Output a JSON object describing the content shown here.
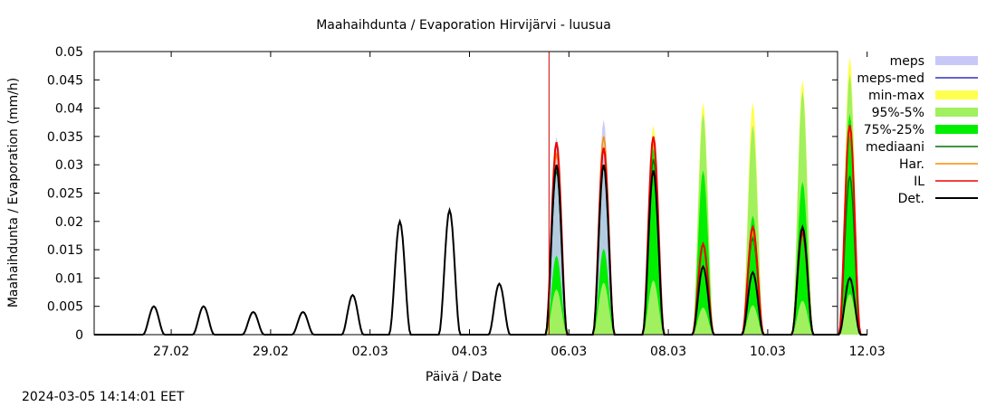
{
  "timestamp": "2024-03-05 14:14:01 EET",
  "chart_data": {
    "type": "area",
    "title": "Maahaihdunta / Evaporation   Hirvijärvi - luusua",
    "xlabel": "Päivä / Date",
    "ylabel": "Maahaihdunta / Evaporation (mm/h)",
    "xlim": [
      0,
      14.3
    ],
    "ylim": [
      0,
      0.05
    ],
    "x_ticks": [
      {
        "x": 1,
        "label": "27.02"
      },
      {
        "x": 3,
        "label": "29.02"
      },
      {
        "x": 5,
        "label": "02.03"
      },
      {
        "x": 7,
        "label": "04.03"
      },
      {
        "x": 9,
        "label": "06.03"
      },
      {
        "x": 11,
        "label": "08.03"
      },
      {
        "x": 13,
        "label": "10.03"
      },
      {
        "x": 15,
        "label": "12.03"
      }
    ],
    "y_ticks": [
      "0",
      "0.005",
      "0.01",
      "0.015",
      "0.02",
      "0.025",
      "0.03",
      "0.035",
      "0.04",
      "0.045",
      "0.05"
    ],
    "now_x": 8.6,
    "grid": false,
    "legend_position": "right",
    "colors": {
      "meps": "#c8c8f8",
      "meps-med": "#3030c0",
      "min-max": "#ffff50",
      "95%-5%": "#a0f060",
      "75%-25%": "#00ee00",
      "mediaani": "#007000",
      "Har.": "#ff8c00",
      "IL": "#ee0000",
      "Det.": "#000000",
      "now_line": "#cc0000"
    },
    "legend": [
      "meps",
      "meps-med",
      "min-max",
      "95%-5%",
      "75%-25%",
      "mediaani",
      "Har.",
      "IL",
      "Det."
    ],
    "history_peaks": [
      {
        "x": 0.65,
        "det": 0.005
      },
      {
        "x": 1.65,
        "det": 0.005
      },
      {
        "x": 2.65,
        "det": 0.004
      },
      {
        "x": 3.65,
        "det": 0.004
      },
      {
        "x": 4.65,
        "det": 0.007
      },
      {
        "x": 5.6,
        "det": 0.02
      },
      {
        "x": 6.6,
        "det": 0.022
      },
      {
        "x": 7.6,
        "det": 0.009
      }
    ],
    "forecast_peaks": [
      {
        "x": 8.75,
        "min": 0,
        "max": 0.033,
        "p5": 0.005,
        "p95": 0.031,
        "p25": 0.02,
        "p75": 0.03,
        "median": 0.029,
        "har": 0.032,
        "il": 0.034,
        "det": 0.03,
        "meps": 0.035
      },
      {
        "x": 9.7,
        "min": 0.005,
        "max": 0.037,
        "p5": 0.01,
        "p95": 0.034,
        "p25": 0.023,
        "p75": 0.031,
        "median": 0.03,
        "har": 0.035,
        "il": 0.033,
        "det": 0.03,
        "meps": 0.038
      },
      {
        "x": 10.7,
        "min": 0.004,
        "max": 0.037,
        "p5": 0.011,
        "p95": 0.034,
        "p25": 0.024,
        "p75": 0.033,
        "median": 0.031,
        "har": 0.034,
        "il": 0.035,
        "det": 0.029,
        "meps": 0.0
      },
      {
        "x": 11.7,
        "min": 0.005,
        "max": 0.041,
        "p5": 0.008,
        "p95": 0.039,
        "p25": 0.012,
        "p75": 0.029,
        "median": 0.016,
        "har": 0.016,
        "il": 0.016,
        "det": 0.012,
        "meps": 0.0
      },
      {
        "x": 12.7,
        "min": 0.004,
        "max": 0.041,
        "p5": 0.009,
        "p95": 0.037,
        "p25": 0.013,
        "p75": 0.021,
        "median": 0.017,
        "har": 0.018,
        "il": 0.019,
        "det": 0.011,
        "meps": 0.0
      },
      {
        "x": 13.7,
        "min": 0.005,
        "max": 0.045,
        "p5": 0.01,
        "p95": 0.043,
        "p25": 0.015,
        "p75": 0.027,
        "median": 0.019,
        "har": 0.019,
        "il": 0.018,
        "det": 0.019,
        "meps": 0.0
      },
      {
        "x": 14.65,
        "min": 0.004,
        "max": 0.049,
        "p5": 0.011,
        "p95": 0.046,
        "p25": 0.018,
        "p75": 0.039,
        "median": 0.028,
        "har": 0.036,
        "il": 0.037,
        "det": 0.01,
        "meps": 0.0
      }
    ]
  }
}
